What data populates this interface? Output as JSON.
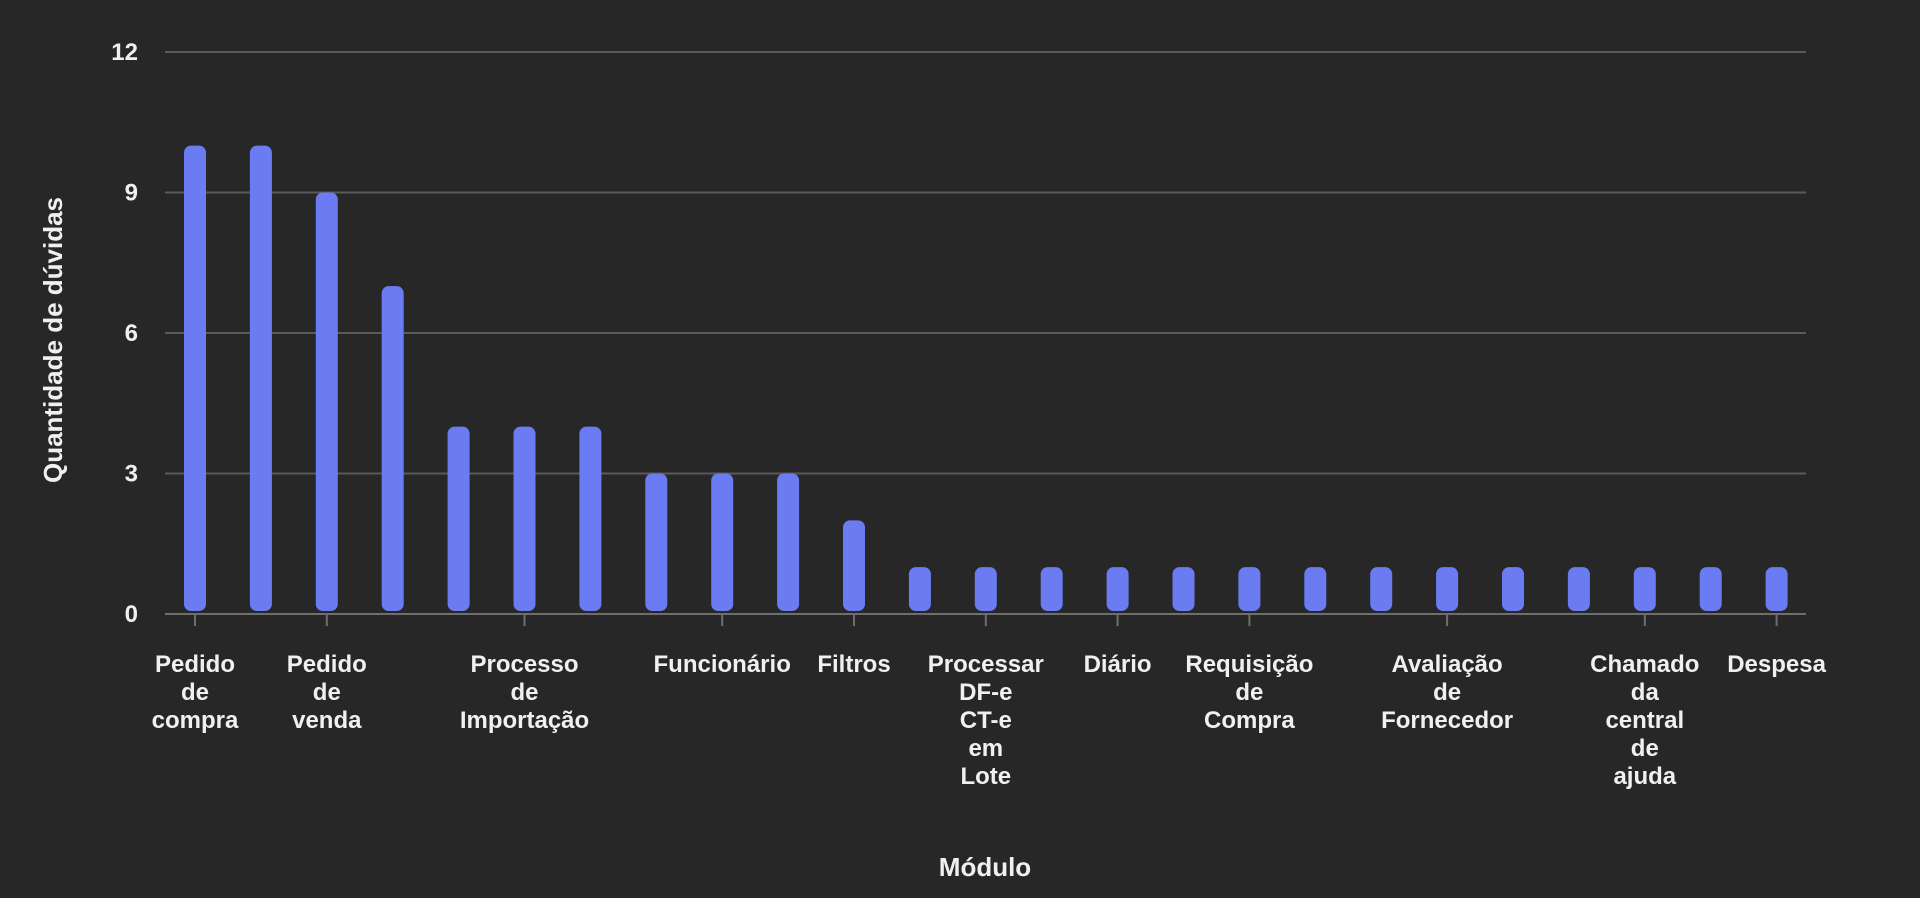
{
  "chart_data": {
    "type": "bar",
    "xlabel": "Módulo",
    "ylabel": "Quantidade de dúvidas",
    "ylim": [
      0,
      12
    ],
    "yticks": [
      0,
      3,
      6,
      9,
      12
    ],
    "grid": true,
    "bar_color": "#6b7cf2",
    "categories": [
      "Pedido de compra",
      "",
      "Pedido de venda",
      "",
      "",
      "Processo de Importação",
      "",
      "",
      "Funcionário",
      "",
      "Filtros",
      "",
      "Processar DF-e CT-e em Lote",
      "",
      "Diário",
      "",
      "Requisição de Compra",
      "",
      "",
      "Avaliação de Fornecedor",
      "",
      "",
      "Chamado da central de ajuda",
      "",
      "Despesa"
    ],
    "values": [
      10,
      10,
      9,
      7,
      4,
      4,
      4,
      3,
      3,
      3,
      2,
      1,
      1,
      1,
      1,
      1,
      1,
      1,
      1,
      1,
      1,
      1,
      1,
      1,
      1
    ]
  }
}
